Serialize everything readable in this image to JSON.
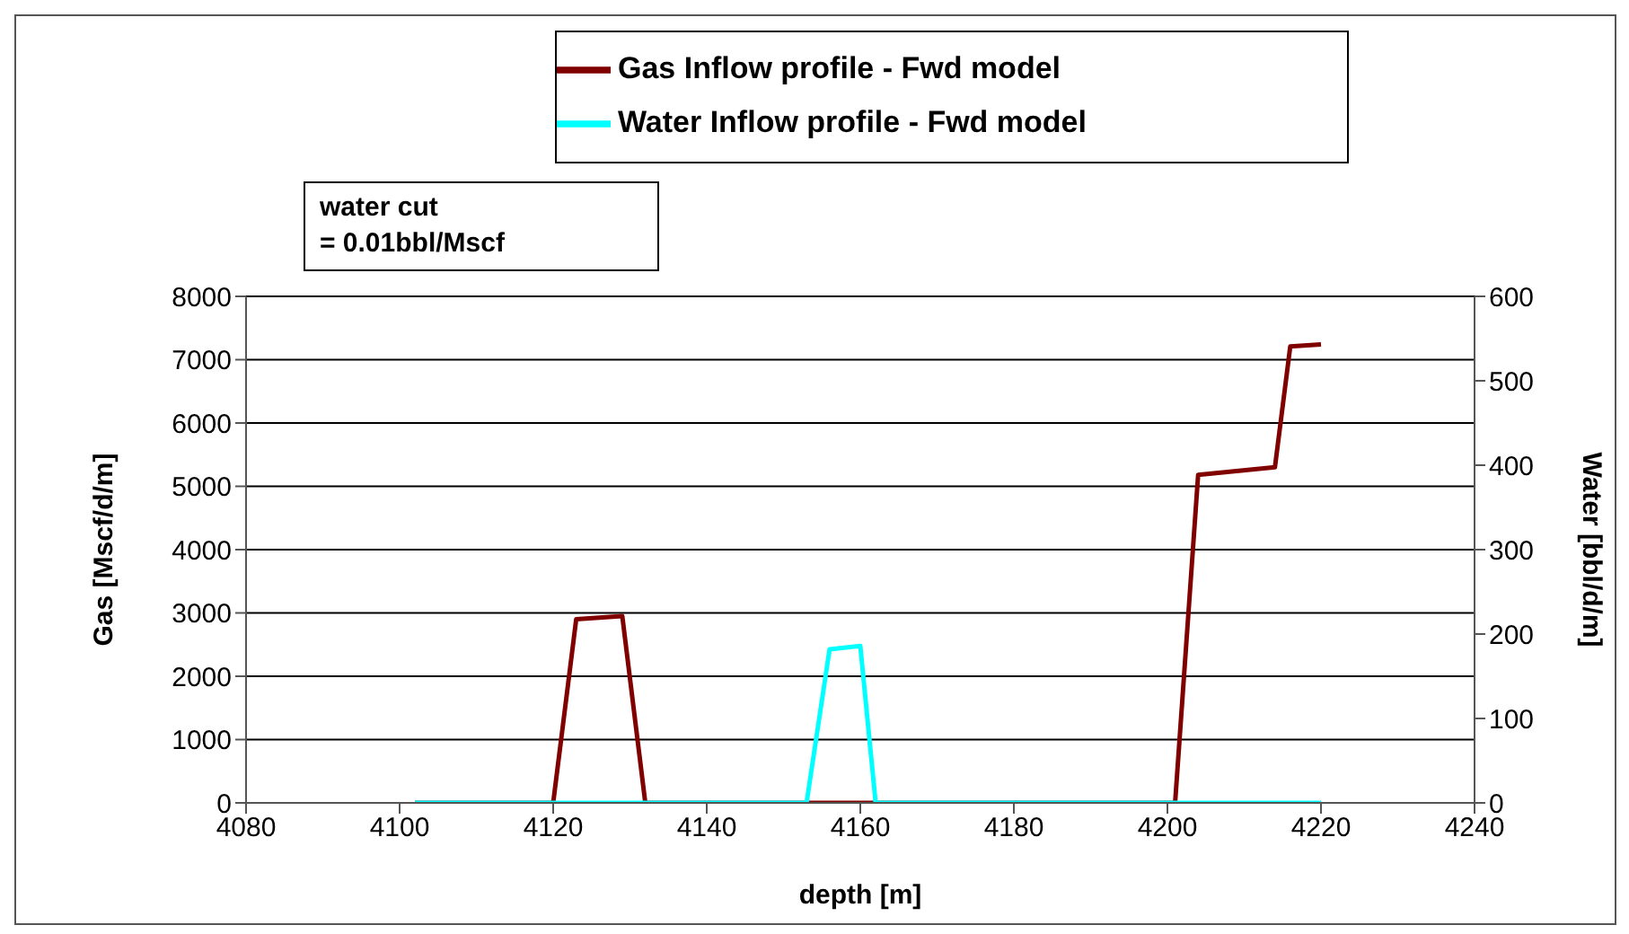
{
  "chart_data": {
    "type": "line",
    "xlabel": "depth [m]",
    "ylabel": "Gas [Mscf/d/m]",
    "y2label": "Water [bbl/d/m]",
    "annotations": [
      "water cut\n= 0.01bbl/Mscf"
    ],
    "series": [
      {
        "name": "Gas Inflow profile - Fwd model",
        "color": "#800000",
        "x": [
          4102,
          4120,
          4123,
          4129,
          4132,
          4153,
          4162,
          4201,
          4204,
          4214,
          4216,
          4220
        ],
        "values": [
          0,
          0,
          2900,
          2950,
          0,
          0,
          0,
          0,
          5180,
          5300,
          7210,
          7240
        ]
      },
      {
        "name": "Water Inflow profile - Fwd model",
        "color": "#00ffff",
        "axis": "y2",
        "x": [
          4102,
          4153,
          4156,
          4160,
          4162,
          4220
        ],
        "values": [
          0,
          0,
          182,
          186,
          0,
          0
        ]
      }
    ],
    "xlim": [
      4080,
      4240
    ],
    "xticks": [
      4080,
      4100,
      4120,
      4140,
      4160,
      4180,
      4200,
      4220,
      4240
    ],
    "ylim": [
      0,
      8000
    ],
    "yticks": [
      0,
      1000,
      2000,
      3000,
      4000,
      5000,
      6000,
      7000,
      8000
    ],
    "y2lim": [
      0,
      600
    ],
    "y2ticks": [
      0,
      100,
      200,
      300,
      400,
      500,
      600
    ],
    "grid": "y",
    "legend": "top",
    "marker": "none",
    "line_style": "solid"
  }
}
